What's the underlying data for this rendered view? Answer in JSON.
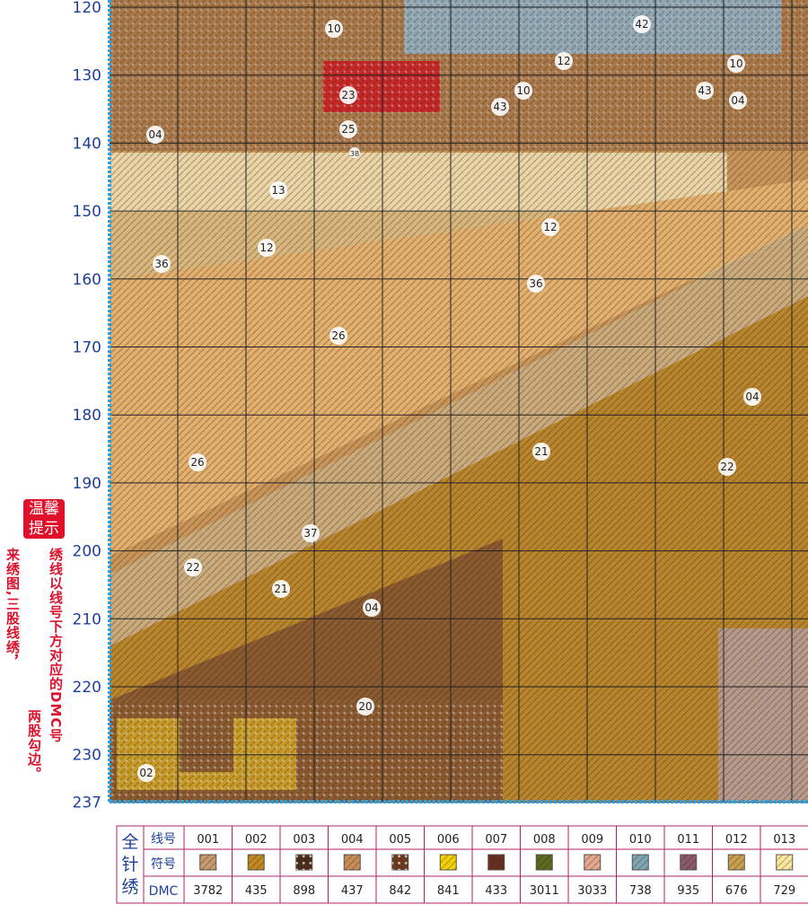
{
  "row_labels": [
    "120",
    "130",
    "140",
    "150",
    "160",
    "170",
    "180",
    "190",
    "200",
    "210",
    "220",
    "230",
    "237"
  ],
  "region_labels": [
    "10",
    "42",
    "12",
    "10",
    "23",
    "10",
    "43",
    "04",
    "43",
    "25",
    "38",
    "04",
    "13",
    "12",
    "12",
    "36",
    "36",
    "26",
    "04",
    "21",
    "26",
    "22",
    "37",
    "22",
    "21",
    "04",
    "20",
    "02"
  ],
  "note": {
    "badge": [
      "温馨",
      "提示"
    ],
    "lines": [
      "绣线以线号下方对应的DMC号",
      "来绣图,三股线绣，",
      "两股勾边。"
    ]
  },
  "legend": {
    "title": "全针绣",
    "row_headers": [
      "线号",
      "符号",
      "DMC"
    ],
    "codes": [
      "001",
      "002",
      "003",
      "004",
      "005",
      "006",
      "007",
      "008",
      "009",
      "010",
      "011",
      "012",
      "013"
    ],
    "dmc": [
      "3782",
      "435",
      "898",
      "437",
      "842",
      "841",
      "433",
      "3011",
      "3033",
      "738",
      "935",
      "676",
      "729"
    ]
  }
}
